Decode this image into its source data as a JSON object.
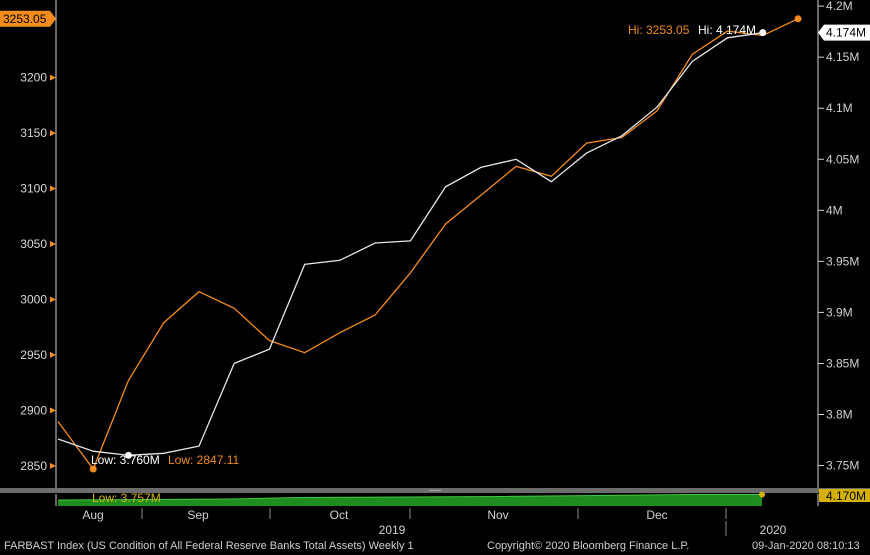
{
  "footer": {
    "security": "FARBAST Index (US Condition of All Federal Reserve Banks Total Assets)  Weekly 1",
    "copyright": "Copyright© 2020 Bloomberg Finance L.P.",
    "timestamp": "09-Jan-2020 08:10:13"
  },
  "colors": {
    "orange": "#f28c1c",
    "white": "#e6e6e6",
    "green": "#1f8c1f",
    "background": "#000000"
  },
  "chart_data": {
    "type": "line",
    "title": "",
    "x_tick_labels": [
      "Aug",
      "Sep",
      "Oct",
      "Nov",
      "Dec"
    ],
    "year_labels": [
      "2019",
      "2020"
    ],
    "left_axis": {
      "range": [
        2830,
        3270
      ],
      "ticks": [
        "2850",
        "2900",
        "2950",
        "3000",
        "3050",
        "3100",
        "3150",
        "3200"
      ]
    },
    "right_axis": {
      "range": [
        3.728,
        4.206
      ],
      "ticks": [
        "3.75M",
        "3.8M",
        "3.85M",
        "3.9M",
        "3.95M",
        "4M",
        "4.05M",
        "4.1M",
        "4.15M",
        "4.2M"
      ]
    },
    "series": [
      {
        "name": "",
        "axis": "left",
        "color": "orange",
        "values": [
          2890,
          2847.11,
          2927,
          2979,
          3007,
          2992,
          2963,
          2952,
          2970,
          2986,
          3024,
          3068,
          3094,
          3120,
          3111,
          3141,
          3146,
          3170,
          3221,
          3242,
          3238,
          3253.05
        ],
        "last_value_label": "3253.05",
        "hi_label": "Hi: 3253.05",
        "low_label": "Low: 2847.11"
      },
      {
        "name": "",
        "axis": "right",
        "color": "white",
        "values": [
          3.776,
          3.764,
          3.76,
          3.762,
          3.769,
          3.85,
          3.864,
          3.947,
          3.951,
          3.968,
          3.97,
          4.023,
          4.042,
          4.05,
          4.028,
          4.056,
          4.073,
          4.101,
          4.146,
          4.169,
          4.174
        ],
        "last_value_label": "4.174M",
        "hi_label": "Hi: 4.174M",
        "low_label": "Low: 3.760M"
      }
    ],
    "lower_panel": {
      "type": "area",
      "color": "green",
      "low_label": "Low: 3.757M",
      "last_value_label": "4.170M"
    }
  }
}
